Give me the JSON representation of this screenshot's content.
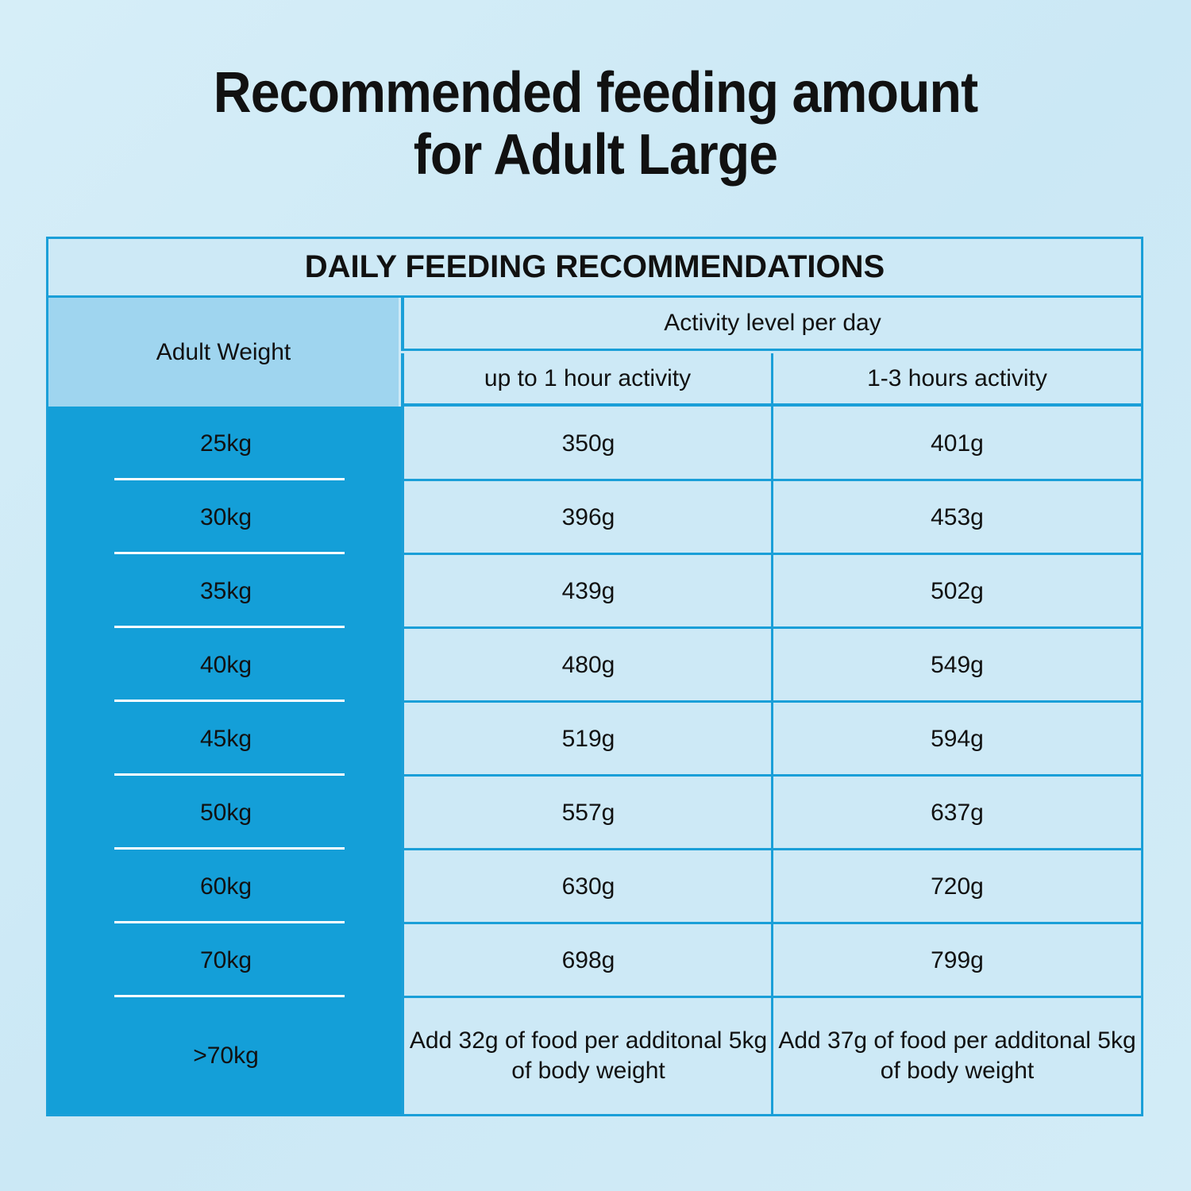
{
  "title": {
    "line1": "Recommended feeding amount",
    "line2": "for Adult Large"
  },
  "table": {
    "banner": "DAILY FEEDING RECOMMENDATIONS",
    "weight_header": "Adult Weight",
    "activity_header": "Activity level per day",
    "columns": [
      "up to 1 hour activity",
      "1-3 hours activity"
    ],
    "rows": [
      {
        "weight": "25kg",
        "low": "350g",
        "high": "401g"
      },
      {
        "weight": "30kg",
        "low": "396g",
        "high": "453g"
      },
      {
        "weight": "35kg",
        "low": "439g",
        "high": "502g"
      },
      {
        "weight": "40kg",
        "low": "480g",
        "high": "549g"
      },
      {
        "weight": "45kg",
        "low": "519g",
        "high": "594g"
      },
      {
        "weight": "50kg",
        "low": "557g",
        "high": "637g"
      },
      {
        "weight": "60kg",
        "low": "630g",
        "high": "720g"
      },
      {
        "weight": "70kg",
        "low": "698g",
        "high": "799g"
      }
    ],
    "last_row": {
      "weight": ">70kg",
      "low": "Add 32g of food per additonal 5kg of  body weight",
      "high": "Add 37g of food per additonal 5kg of  body weight"
    }
  },
  "colors": {
    "accent": "#149fd8",
    "header_light": "#9fd5ef",
    "cell_bg": "#cde9f6"
  }
}
